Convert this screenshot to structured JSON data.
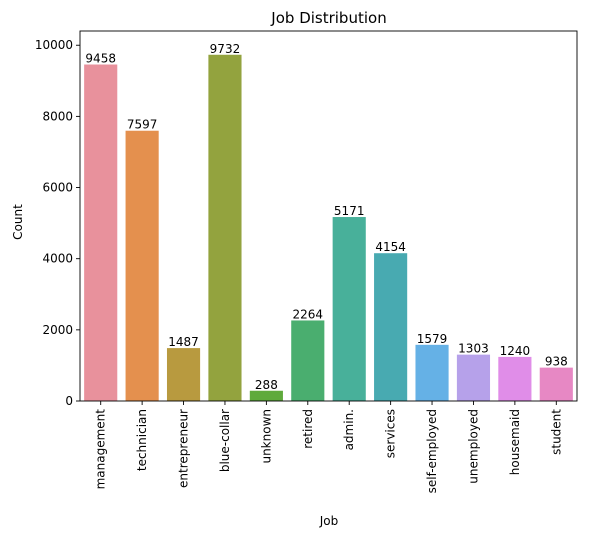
{
  "chart_data": {
    "type": "bar",
    "title": "Job Distribution",
    "xlabel": "Job",
    "ylabel": "Count",
    "ylim": [
      0,
      10400
    ],
    "yticks": [
      0,
      2000,
      4000,
      6000,
      8000,
      10000
    ],
    "categories": [
      "management",
      "technician",
      "entrepreneur",
      "blue-collar",
      "unknown",
      "retired",
      "admin.",
      "services",
      "self-employed",
      "unemployed",
      "housemaid",
      "student"
    ],
    "values": [
      9458,
      7597,
      1487,
      9732,
      288,
      2264,
      5171,
      4154,
      1579,
      1303,
      1240,
      938
    ],
    "colors": [
      "#e8919c",
      "#e4904e",
      "#b89a3f",
      "#93a33e",
      "#5faa3c",
      "#4aae6f",
      "#48b09a",
      "#48aab1",
      "#65b1e6",
      "#b6a1ea",
      "#e08de8",
      "#e788c4"
    ],
    "grid": false,
    "legend": "none"
  }
}
